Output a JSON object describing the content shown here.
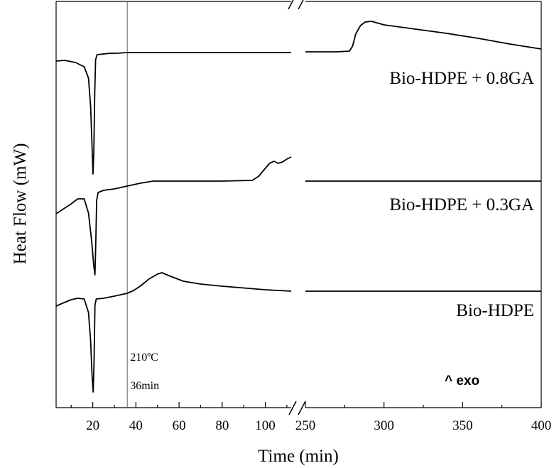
{
  "chart_data": {
    "type": "line",
    "xlabel": "Time (min)",
    "ylabel": "Heat Flow (mW)",
    "x_break": {
      "left_range": [
        3,
        112
      ],
      "right_range": [
        250,
        400
      ],
      "left_ticks": [
        20,
        40,
        60,
        80,
        100
      ],
      "right_ticks": [
        250,
        300,
        350,
        400
      ]
    },
    "y_ticks_shown": false,
    "marker": {
      "x": 36,
      "line1": "210ºC",
      "line2": "36min"
    },
    "exo_label": "^ exo",
    "series": [
      {
        "name": "Bio-HDPE + 0.8GA",
        "left": [
          [
            3,
            86
          ],
          [
            7,
            85
          ],
          [
            12,
            88
          ],
          [
            16,
            94
          ],
          [
            18,
            110
          ],
          [
            19,
            150
          ],
          [
            19.6,
            200
          ],
          [
            20.1,
            245
          ],
          [
            20.5,
            215
          ],
          [
            20.9,
            130
          ],
          [
            21.3,
            84
          ],
          [
            22,
            77
          ],
          [
            25,
            76
          ],
          [
            28,
            75
          ],
          [
            31,
            75
          ],
          [
            36,
            74
          ],
          [
            40,
            74
          ],
          [
            60,
            74
          ],
          [
            80,
            74
          ],
          [
            100,
            74
          ],
          [
            110,
            74
          ],
          [
            112,
            74
          ]
        ],
        "right": [
          [
            250,
            73
          ],
          [
            260,
            73
          ],
          [
            270,
            73
          ],
          [
            278,
            72
          ],
          [
            280,
            65
          ],
          [
            282,
            48
          ],
          [
            285,
            36
          ],
          [
            288,
            31
          ],
          [
            292,
            30
          ],
          [
            300,
            35
          ],
          [
            320,
            41
          ],
          [
            340,
            47
          ],
          [
            360,
            54
          ],
          [
            380,
            62
          ],
          [
            400,
            69
          ]
        ]
      },
      {
        "name": "Bio-HDPE + 0.3GA",
        "left": [
          [
            3,
            301
          ],
          [
            6,
            295
          ],
          [
            10,
            287
          ],
          [
            13,
            280
          ],
          [
            16,
            280
          ],
          [
            18,
            300
          ],
          [
            19.5,
            340
          ],
          [
            20.5,
            375
          ],
          [
            21,
            387
          ],
          [
            21.4,
            340
          ],
          [
            21.8,
            282
          ],
          [
            22.5,
            271
          ],
          [
            25,
            268
          ],
          [
            30,
            266
          ],
          [
            36,
            262
          ],
          [
            42,
            258
          ],
          [
            48,
            255
          ],
          [
            60,
            255
          ],
          [
            80,
            255
          ],
          [
            94,
            254
          ],
          [
            97,
            248
          ],
          [
            100,
            237
          ],
          [
            102,
            230
          ],
          [
            104,
            227
          ],
          [
            106,
            230
          ],
          [
            108,
            228
          ],
          [
            110,
            224
          ],
          [
            112,
            221
          ]
        ],
        "right": [
          [
            250,
            255
          ],
          [
            300,
            255
          ],
          [
            350,
            255
          ],
          [
            400,
            255
          ]
        ]
      },
      {
        "name": "Bio-HDPE",
        "left": [
          [
            3,
            431
          ],
          [
            6,
            427
          ],
          [
            10,
            422
          ],
          [
            13,
            420
          ],
          [
            16,
            421
          ],
          [
            18,
            440
          ],
          [
            19,
            480
          ],
          [
            19.7,
            530
          ],
          [
            20.2,
            552
          ],
          [
            20.6,
            510
          ],
          [
            21,
            430
          ],
          [
            21.6,
            421
          ],
          [
            25,
            420
          ],
          [
            30,
            417
          ],
          [
            36,
            413
          ],
          [
            39,
            409
          ],
          [
            42,
            403
          ],
          [
            46,
            393
          ],
          [
            50,
            386
          ],
          [
            52,
            384
          ],
          [
            56,
            389
          ],
          [
            62,
            396
          ],
          [
            70,
            400
          ],
          [
            80,
            403
          ],
          [
            92,
            406
          ],
          [
            100,
            408
          ],
          [
            112,
            410
          ]
        ],
        "right": [
          [
            250,
            410
          ],
          [
            300,
            410
          ],
          [
            350,
            410
          ],
          [
            400,
            410
          ]
        ]
      }
    ]
  }
}
